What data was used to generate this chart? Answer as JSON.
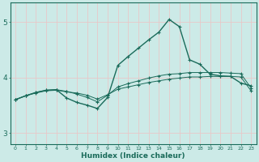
{
  "xlabel": "Humidex (Indice chaleur)",
  "ylabel": "",
  "background_color": "#cceae7",
  "grid_color": "#e8c8c8",
  "line_color": "#1a6b5a",
  "xlim": [
    -0.5,
    23.5
  ],
  "ylim": [
    2.8,
    5.35
  ],
  "yticks": [
    3,
    4,
    5
  ],
  "xticks": [
    0,
    1,
    2,
    3,
    4,
    5,
    6,
    7,
    8,
    9,
    10,
    11,
    12,
    13,
    14,
    15,
    16,
    17,
    18,
    19,
    20,
    21,
    22,
    23
  ],
  "line1_x": [
    0,
    1,
    2,
    3,
    4,
    5,
    6,
    7,
    8,
    9,
    10,
    11,
    12,
    13,
    14,
    15,
    16,
    17,
    18,
    19,
    20,
    21,
    22,
    23
  ],
  "line1_y": [
    3.6,
    3.67,
    3.72,
    3.76,
    3.77,
    3.74,
    3.72,
    3.68,
    3.61,
    3.69,
    3.79,
    3.83,
    3.87,
    3.91,
    3.94,
    3.97,
    3.99,
    4.01,
    4.01,
    4.02,
    4.02,
    4.02,
    4.01,
    3.76
  ],
  "line2_x": [
    0,
    1,
    2,
    3,
    4,
    5,
    6,
    7,
    8,
    9,
    10,
    11,
    12,
    13,
    14,
    15,
    16,
    17,
    18,
    19,
    20,
    21,
    22,
    23
  ],
  "line2_y": [
    3.6,
    3.67,
    3.73,
    3.77,
    3.78,
    3.75,
    3.7,
    3.64,
    3.56,
    3.68,
    3.83,
    3.89,
    3.94,
    3.99,
    4.03,
    4.06,
    4.07,
    4.09,
    4.09,
    4.09,
    4.09,
    4.08,
    4.07,
    3.81
  ],
  "line3_x": [
    0,
    1,
    2,
    3,
    4,
    5,
    6,
    7,
    8,
    9,
    10,
    11,
    12,
    13,
    14,
    15,
    16,
    17,
    18,
    19,
    20,
    21,
    22,
    23
  ],
  "line3_y": [
    3.6,
    3.67,
    3.73,
    3.77,
    3.78,
    3.63,
    3.55,
    3.5,
    3.44,
    3.64,
    4.22,
    4.38,
    4.53,
    4.68,
    4.82,
    5.05,
    4.92,
    4.32,
    4.24,
    4.06,
    4.03,
    4.02,
    3.9,
    3.85
  ]
}
